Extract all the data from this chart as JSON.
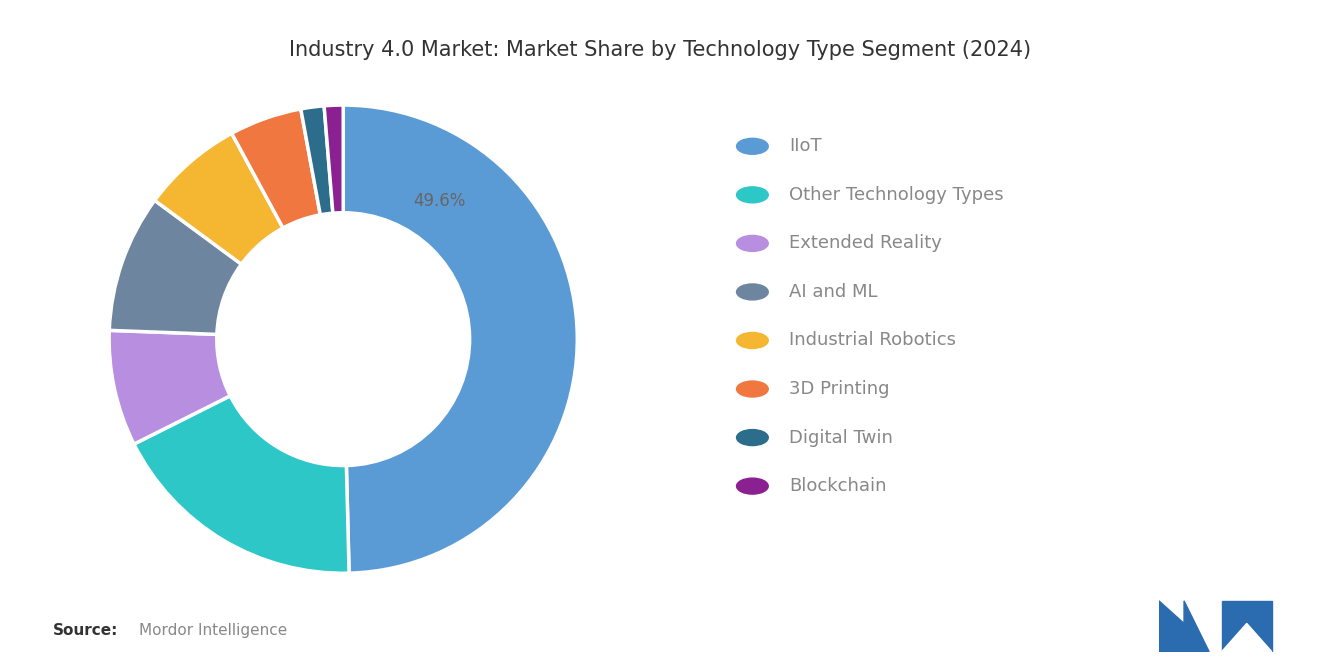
{
  "title": "Industry 4.0 Market: Market Share by Technology Type Segment (2024)",
  "labels": [
    "IIoT",
    "Other Technology Types",
    "Extended Reality",
    "AI and ML",
    "Industrial Robotics",
    "3D Printing",
    "Digital Twin",
    "Blockchain"
  ],
  "values": [
    49.6,
    18.0,
    8.0,
    9.5,
    7.0,
    5.0,
    1.6,
    1.3
  ],
  "colors": [
    "#5B9BD5",
    "#2DC7C7",
    "#B88FE0",
    "#6E85A0",
    "#F5B731",
    "#F07840",
    "#2B6D8A",
    "#8B2090"
  ],
  "label_iot": "49.6%",
  "source_bold": "Source:",
  "source_text": "Mordor Intelligence",
  "title_fontsize": 15,
  "label_fontsize": 12,
  "legend_fontsize": 13,
  "bg_color": "#FFFFFF",
  "text_color": "#666666",
  "title_color": "#333333",
  "legend_color": "#888888",
  "source_bold_color": "#333333",
  "logo_color": "#2B6CB0"
}
